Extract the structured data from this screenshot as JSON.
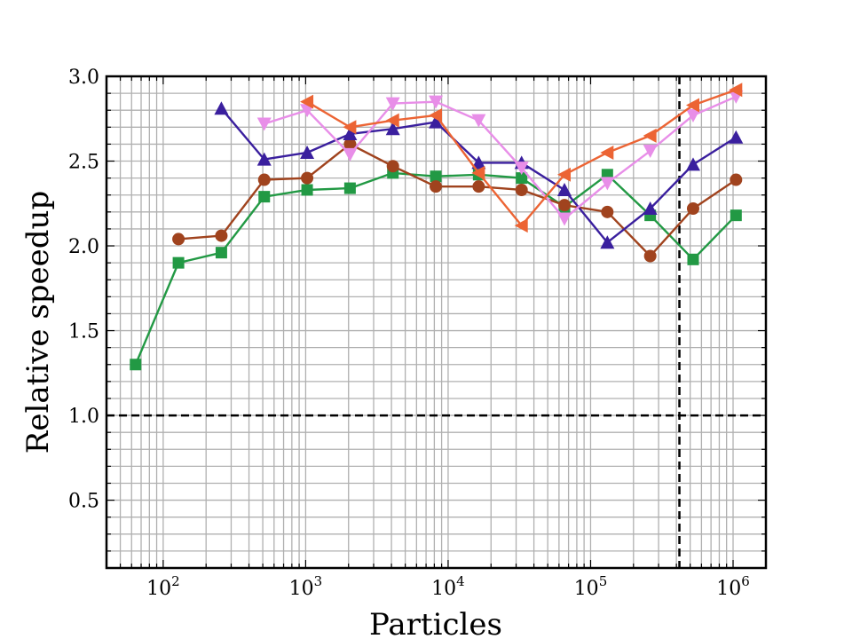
{
  "chart_data": {
    "type": "line",
    "title": "",
    "xlabel": "Particles",
    "ylabel": "Relative speedup",
    "xscale": "log",
    "xlim": [
      40,
      1700000
    ],
    "ylim": [
      0.1,
      3.0
    ],
    "grid": "major and minor",
    "legend": "none",
    "x_ticks": [
      {
        "value": 100,
        "label": "10",
        "exp": "2"
      },
      {
        "value": 1000,
        "label": "10",
        "exp": "3"
      },
      {
        "value": 10000,
        "label": "10",
        "exp": "4"
      },
      {
        "value": 100000,
        "label": "10",
        "exp": "5"
      },
      {
        "value": 1000000,
        "label": "10",
        "exp": "6"
      }
    ],
    "y_ticks": [
      {
        "value": 0.5,
        "label": "0.5"
      },
      {
        "value": 1.0,
        "label": "1.0"
      },
      {
        "value": 1.5,
        "label": "1.5"
      },
      {
        "value": 2.0,
        "label": "2.0"
      },
      {
        "value": 2.5,
        "label": "2.5"
      },
      {
        "value": 3.0,
        "label": "3.0"
      }
    ],
    "reference_lines": [
      {
        "axis": "y",
        "value": 1.0,
        "style": "dashed"
      },
      {
        "axis": "x",
        "value": 420000,
        "style": "dashed"
      }
    ],
    "series": [
      {
        "color": "#229944",
        "marker": "square",
        "points": [
          [
            64,
            1.3
          ],
          [
            128,
            1.9
          ],
          [
            256,
            1.96
          ],
          [
            512,
            2.29
          ],
          [
            1024,
            2.33
          ],
          [
            2048,
            2.34
          ],
          [
            4096,
            2.43
          ],
          [
            8192,
            2.41
          ],
          [
            16384,
            2.42
          ],
          [
            32768,
            2.4
          ],
          [
            65536,
            2.23
          ],
          [
            131072,
            2.42
          ],
          [
            262144,
            2.18
          ],
          [
            524288,
            1.92
          ],
          [
            1048576,
            2.18
          ]
        ]
      },
      {
        "color": "#a0431e",
        "marker": "circle",
        "points": [
          [
            128,
            2.04
          ],
          [
            256,
            2.06
          ],
          [
            512,
            2.39
          ],
          [
            1024,
            2.4
          ],
          [
            2048,
            2.6
          ],
          [
            4096,
            2.47
          ],
          [
            8192,
            2.35
          ],
          [
            16384,
            2.35
          ],
          [
            32768,
            2.33
          ],
          [
            65536,
            2.24
          ],
          [
            131072,
            2.2
          ],
          [
            262144,
            1.94
          ],
          [
            524288,
            2.22
          ],
          [
            1048576,
            2.39
          ]
        ]
      },
      {
        "color": "#3a1f9e",
        "marker": "triangle-up",
        "points": [
          [
            256,
            2.81
          ],
          [
            512,
            2.51
          ],
          [
            1024,
            2.55
          ],
          [
            2048,
            2.66
          ],
          [
            4096,
            2.69
          ],
          [
            8192,
            2.73
          ],
          [
            16384,
            2.49
          ],
          [
            32768,
            2.49
          ],
          [
            65536,
            2.33
          ],
          [
            131072,
            2.02
          ],
          [
            262144,
            2.22
          ],
          [
            524288,
            2.48
          ],
          [
            1048576,
            2.64
          ]
        ]
      },
      {
        "color": "#e88ee8",
        "marker": "triangle-down",
        "points": [
          [
            512,
            2.72
          ],
          [
            1024,
            2.8
          ],
          [
            2048,
            2.54
          ],
          [
            4096,
            2.84
          ],
          [
            8192,
            2.85
          ],
          [
            16384,
            2.74
          ],
          [
            32768,
            2.46
          ],
          [
            65536,
            2.16
          ],
          [
            131072,
            2.37
          ],
          [
            262144,
            2.56
          ],
          [
            524288,
            2.77
          ],
          [
            1048576,
            2.88
          ]
        ]
      },
      {
        "color": "#ec6434",
        "marker": "triangle-left",
        "points": [
          [
            1024,
            2.85
          ],
          [
            2048,
            2.7
          ],
          [
            4096,
            2.74
          ],
          [
            8192,
            2.77
          ],
          [
            16384,
            2.43
          ],
          [
            32768,
            2.12
          ],
          [
            65536,
            2.42
          ],
          [
            131072,
            2.55
          ],
          [
            262144,
            2.65
          ],
          [
            524288,
            2.83
          ],
          [
            1048576,
            2.92
          ]
        ]
      }
    ]
  }
}
